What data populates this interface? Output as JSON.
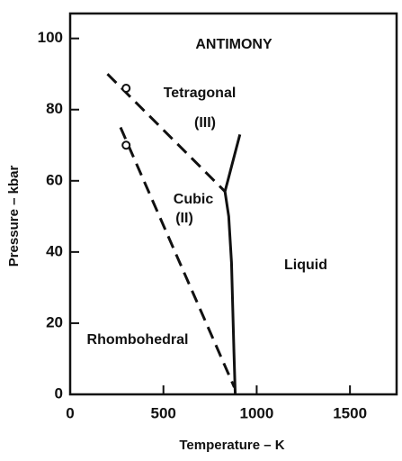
{
  "chart_data": {
    "type": "line",
    "title": "ANTIMONY",
    "x_label": "Temperature – K",
    "y_label": "Pressure – kbar",
    "xlim": [
      0,
      1750
    ],
    "ylim": [
      0,
      107
    ],
    "xticks": [
      0,
      500,
      1000,
      1500
    ],
    "yticks": [
      0,
      20,
      40,
      60,
      80,
      100
    ],
    "annotations": [
      "Tetragonal",
      "(III)",
      "Cubic",
      "(II)",
      "Liquid",
      "Rhombohedral"
    ],
    "series": [
      {
        "x": [
          200,
          830
        ],
        "values": [
          90,
          57
        ],
        "color": "#111",
        "style": "dashed"
      },
      {
        "x": [
          270,
          880
        ],
        "values": [
          75,
          2
        ],
        "color": "#111",
        "style": "dashed"
      },
      {
        "x": [
          885,
          878,
          865,
          850,
          830,
          870,
          910
        ],
        "values": [
          0,
          12,
          37,
          50,
          57,
          65,
          73
        ],
        "color": "#111",
        "style": "solid"
      }
    ],
    "points": {
      "x": [
        300,
        300
      ],
      "values": [
        86,
        70
      ],
      "color": "#111"
    }
  }
}
